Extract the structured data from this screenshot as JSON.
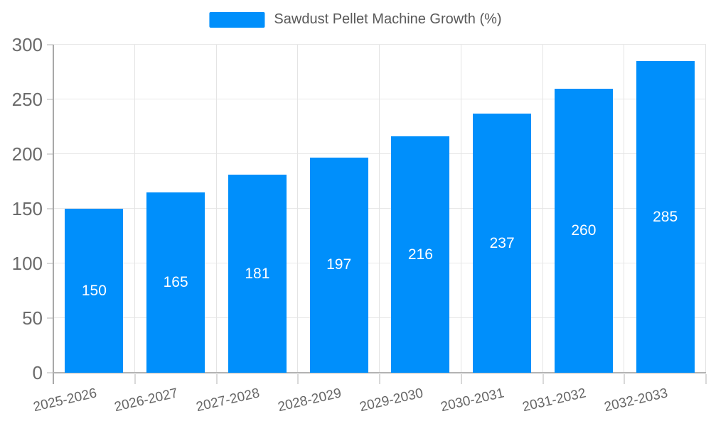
{
  "legend": {
    "label": "Sawdust Pellet Machine Growth (%)"
  },
  "chart_data": {
    "type": "bar",
    "title": "Sawdust Pellet Machine Growth (%)",
    "categories": [
      "2025-2026",
      "2026-2027",
      "2027-2028",
      "2028-2029",
      "2029-2030",
      "2030-2031",
      "2031-2032",
      "2032-2033"
    ],
    "series": [
      {
        "name": "Sawdust Pellet Machine Growth (%)",
        "values": [
          150,
          165,
          181,
          197,
          216,
          237,
          260,
          285
        ]
      }
    ],
    "xlabel": "",
    "ylabel": "",
    "ylim": [
      0,
      300
    ],
    "yticks": [
      0,
      50,
      100,
      150,
      200,
      250,
      300
    ],
    "grid": true,
    "legend_position": "top",
    "bar_color": "#008FFB",
    "value_label_color": "#ffffff",
    "axis_label_color": "#666666"
  }
}
